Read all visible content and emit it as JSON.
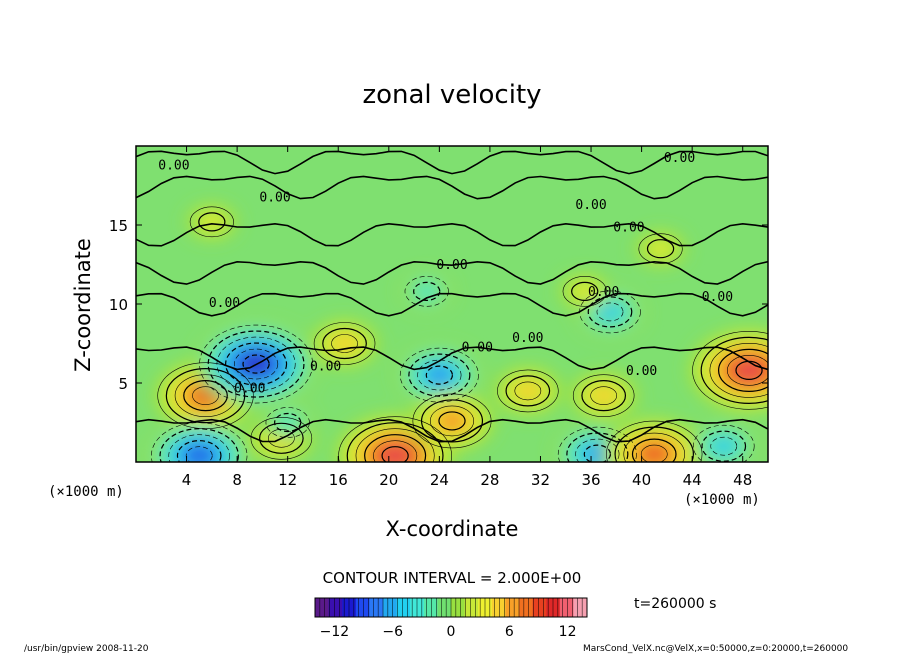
{
  "chart_data": {
    "type": "heatmap",
    "title": "zonal velocity",
    "xlabel": "X-coordinate",
    "ylabel": "Z-coordinate",
    "x_unit_note": "(×1000 m)",
    "z_unit_note": "(×1000 m)",
    "xlim": [
      0,
      50
    ],
    "ylim": [
      0,
      20
    ],
    "x_ticks": [
      4,
      8,
      12,
      16,
      20,
      24,
      28,
      32,
      36,
      40,
      44,
      48
    ],
    "y_ticks": [
      5,
      10,
      15
    ],
    "contour_interval_text": "CONTOUR INTERVAL = 2.000E+00",
    "contour_label": "0.00",
    "colorbar": {
      "min": -14,
      "max": 14,
      "ticks": [
        -12,
        -6,
        0,
        6,
        12
      ],
      "colors": [
        "#5a1a8a",
        "#3a0fb0",
        "#1a1ad0",
        "#1f4af0",
        "#2a78f5",
        "#22a8f0",
        "#22d0f0",
        "#40e8d8",
        "#55e8a8",
        "#70e070",
        "#98e040",
        "#c8e838",
        "#eef030",
        "#f8d030",
        "#f8a028",
        "#f07020",
        "#e84020",
        "#e02828",
        "#f06070",
        "#f5a0b0"
      ]
    },
    "time_label": "t=260000 s",
    "footer_left": "/usr/bin/gpview  2008-11-20",
    "footer_right": "MarsCond_VelX.nc@VelX,x=0:50000,z=0:20000,t=260000",
    "features": [
      {
        "x": 5.5,
        "z": 4.2,
        "value": 10,
        "kind": "max"
      },
      {
        "x": 9.5,
        "z": 6.2,
        "value": -12,
        "kind": "min"
      },
      {
        "x": 5.0,
        "z": 0.4,
        "value": -10,
        "kind": "min"
      },
      {
        "x": 20.5,
        "z": 0.4,
        "value": 12,
        "kind": "max"
      },
      {
        "x": 24.0,
        "z": 5.5,
        "value": -8,
        "kind": "min"
      },
      {
        "x": 25.0,
        "z": 2.6,
        "value": 8,
        "kind": "max"
      },
      {
        "x": 16.5,
        "z": 7.5,
        "value": 6,
        "kind": "max"
      },
      {
        "x": 37.5,
        "z": 9.5,
        "value": -6,
        "kind": "min"
      },
      {
        "x": 48.5,
        "z": 5.8,
        "value": 12,
        "kind": "max"
      },
      {
        "x": 36.5,
        "z": 0.5,
        "value": -8,
        "kind": "min"
      },
      {
        "x": 41.0,
        "z": 0.5,
        "value": 10,
        "kind": "max"
      },
      {
        "x": 46.5,
        "z": 1.0,
        "value": -6,
        "kind": "min"
      },
      {
        "x": 11.5,
        "z": 1.5,
        "value": 6,
        "kind": "max"
      },
      {
        "x": 37.0,
        "z": 4.2,
        "value": 6,
        "kind": "max"
      },
      {
        "x": 31.0,
        "z": 4.5,
        "value": 6,
        "kind": "max"
      },
      {
        "x": 23.0,
        "z": 10.8,
        "value": -4,
        "kind": "min"
      },
      {
        "x": 35.5,
        "z": 10.8,
        "value": 4,
        "kind": "max"
      },
      {
        "x": 41.5,
        "z": 13.5,
        "value": 4,
        "kind": "max"
      },
      {
        "x": 6.0,
        "z": 15.2,
        "value": 4,
        "kind": "max"
      },
      {
        "x": 12.0,
        "z": 2.5,
        "value": -4,
        "kind": "min"
      }
    ],
    "grid": false
  }
}
